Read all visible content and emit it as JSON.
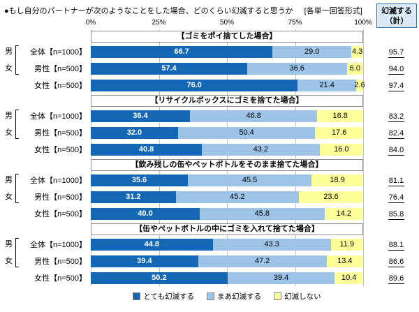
{
  "title": "●もし自分のパートナーが次のようなことをした場合、どのくらい幻滅すると思うか",
  "format_note": "[各単一回答形式]",
  "summary_header": {
    "line1": "幻滅する",
    "line2": "（計）"
  },
  "axis_ticks": [
    "0%",
    "25%",
    "50%",
    "75%",
    "100%"
  ],
  "gender_bracket": {
    "male": "男",
    "female": "女"
  },
  "colors": {
    "series_dark_blue": "#1467b4",
    "series_light_blue": "#9dc3e6",
    "series_yellow": "#ffff99",
    "summary_header_bg": "#dbe9f7",
    "summary_header_border": "#2e75b6",
    "gridline": "#bfbfbf"
  },
  "legend": [
    {
      "label": "とても幻滅する",
      "color": "#1467b4"
    },
    {
      "label": "まあ幻滅する",
      "color": "#9dc3e6"
    },
    {
      "label": "幻滅しない",
      "color": "#ffff99"
    }
  ],
  "chart_data": {
    "type": "bar",
    "stacked": true,
    "orientation": "horizontal",
    "title": "もし自分のパートナーが次のようなことをした場合、どのくらい幻滅すると思うか",
    "x_ticks": [
      0,
      25,
      50,
      75,
      100
    ],
    "xlim": [
      0,
      100
    ],
    "series_names": [
      "とても幻滅する",
      "まあ幻滅する",
      "幻滅しない"
    ],
    "summary_column": "幻滅する（計）",
    "groups": [
      {
        "title": "【ゴミをポイ捨てした場合】",
        "rows": [
          {
            "label": "全体【n=1000】",
            "values": [
              66.7,
              29.0,
              4.3
            ],
            "total": "95.7"
          },
          {
            "label": "男性【n=500】",
            "values": [
              57.4,
              36.6,
              6.0
            ],
            "total": "94.0"
          },
          {
            "label": "女性【n=500】",
            "values": [
              76.0,
              21.4,
              2.6
            ],
            "total": "97.4"
          }
        ]
      },
      {
        "title": "【リサイクルボックスにゴミを捨てた場合】",
        "rows": [
          {
            "label": "全体【n=1000】",
            "values": [
              36.4,
              46.8,
              16.8
            ],
            "total": "83.2"
          },
          {
            "label": "男性【n=500】",
            "values": [
              32.0,
              50.4,
              17.6
            ],
            "total": "82.4"
          },
          {
            "label": "女性【n=500】",
            "values": [
              40.8,
              43.2,
              16.0
            ],
            "total": "84.0"
          }
        ]
      },
      {
        "title": "【飲み残しの缶やペットボトルをそのまま捨てた場合】",
        "rows": [
          {
            "label": "全体【n=1000】",
            "values": [
              35.6,
              45.5,
              18.9
            ],
            "total": "81.1"
          },
          {
            "label": "男性【n=500】",
            "values": [
              31.2,
              45.2,
              23.6
            ],
            "total": "76.4"
          },
          {
            "label": "女性【n=500】",
            "values": [
              40.0,
              45.8,
              14.2
            ],
            "total": "85.8"
          }
        ]
      },
      {
        "title": "【缶やペットボトルの中にゴミを入れて捨てた場合】",
        "rows": [
          {
            "label": "全体【n=1000】",
            "values": [
              44.8,
              43.3,
              11.9
            ],
            "total": "88.1"
          },
          {
            "label": "男性【n=500】",
            "values": [
              39.4,
              47.2,
              13.4
            ],
            "total": "86.6"
          },
          {
            "label": "女性【n=500】",
            "values": [
              50.2,
              39.4,
              10.4
            ],
            "total": "89.6"
          }
        ]
      }
    ]
  }
}
